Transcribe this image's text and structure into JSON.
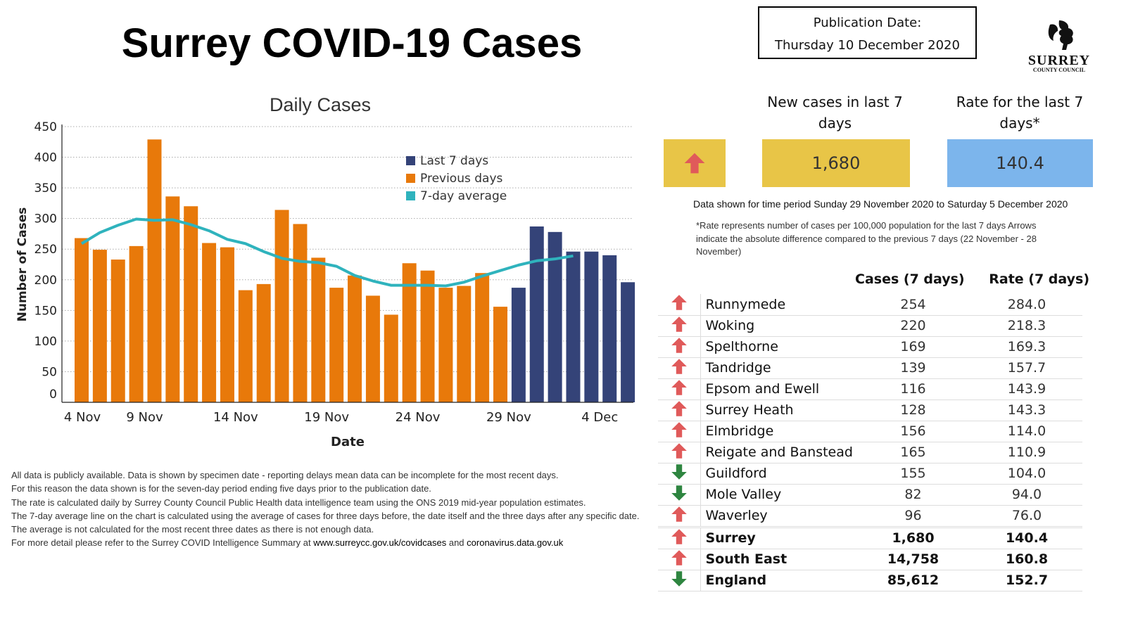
{
  "title": "Surrey COVID-19 Cases",
  "publication": {
    "label": "Publication Date:",
    "date": "Thursday 10 December 2020"
  },
  "logo": {
    "line1": "SURREY",
    "line2": "COUNTY COUNCIL"
  },
  "kpis": {
    "trend_icon": "arrow-up-icon",
    "trend_color": "#e05a5a",
    "trend_box_color": "#e8c547",
    "new_cases_label": "New cases in last 7 days",
    "new_cases_value": "1,680",
    "new_cases_color": "#e8c547",
    "rate_label": "Rate for the last 7 days*",
    "rate_value": "140.4",
    "rate_color": "#7cb5ec"
  },
  "period_text": "Data shown for time period Sunday 29 November 2020 to Saturday 5 December 2020",
  "rate_note": "*Rate represents number of cases per 100,000 population for the last 7 days Arrows indicate the absolute difference compared to the previous 7 days (22 November - 28 November)",
  "table": {
    "headers": [
      "Cases  (7 days)",
      "Rate (7 days)"
    ],
    "rows": [
      {
        "name": "Runnymede",
        "cases": "254",
        "rate": "284.0",
        "trend": "up"
      },
      {
        "name": "Woking",
        "cases": "220",
        "rate": "218.3",
        "trend": "up"
      },
      {
        "name": "Spelthorne",
        "cases": "169",
        "rate": "169.3",
        "trend": "up"
      },
      {
        "name": "Tandridge",
        "cases": "139",
        "rate": "157.7",
        "trend": "up"
      },
      {
        "name": "Epsom and Ewell",
        "cases": "116",
        "rate": "143.9",
        "trend": "up"
      },
      {
        "name": "Surrey Heath",
        "cases": "128",
        "rate": "143.3",
        "trend": "up"
      },
      {
        "name": "Elmbridge",
        "cases": "156",
        "rate": "114.0",
        "trend": "up"
      },
      {
        "name": "Reigate and Banstead",
        "cases": "165",
        "rate": "110.9",
        "trend": "up"
      },
      {
        "name": "Guildford",
        "cases": "155",
        "rate": "104.0",
        "trend": "down"
      },
      {
        "name": "Mole Valley",
        "cases": "82",
        "rate": "94.0",
        "trend": "down"
      },
      {
        "name": "Waverley",
        "cases": "96",
        "rate": "76.0",
        "trend": "up"
      }
    ],
    "totals": [
      {
        "name": "Surrey",
        "cases": "1,680",
        "rate": "140.4",
        "trend": "up"
      },
      {
        "name": "South East",
        "cases": "14,758",
        "rate": "160.8",
        "trend": "up"
      },
      {
        "name": "England",
        "cases": "85,612",
        "rate": "152.7",
        "trend": "down"
      }
    ],
    "up_color": "#e05a5a",
    "down_color": "#2e8540"
  },
  "notes": [
    "All data is publicly available. Data is shown by specimen date - reporting delays mean data can be incomplete for the most recent days.",
    "For this reason the data shown is for the seven-day period ending five days prior to the publication date.",
    "The rate is calculated daily by Surrey County Council Public Health data intelligence team using the ONS 2019 mid-year population estimates.",
    "The 7-day average line on the chart is calculated using the average of cases for three days before, the date itself and the three days after any specific date. The average is not calculated for the most recent three dates as there is not enough data."
  ],
  "notes_last": {
    "prefix": "For more detail please refer to the Surrey COVID Intelligence Summary at ",
    "link1": "www.surreycc.gov.uk/covidcases",
    "mid": " and ",
    "link2": "coronavirus.data.gov.uk"
  },
  "chart_data": {
    "type": "bar",
    "title": "Daily Cases",
    "xlabel": "Date",
    "ylabel": "Number of Cases",
    "ylim": [
      0,
      450
    ],
    "yticks": [
      0,
      50,
      100,
      150,
      200,
      250,
      300,
      350,
      400,
      450
    ],
    "grid": true,
    "legend_position": "top-right",
    "x": [
      "5 Nov",
      "6 Nov",
      "7 Nov",
      "8 Nov",
      "9 Nov",
      "10 Nov",
      "11 Nov",
      "12 Nov",
      "13 Nov",
      "14 Nov",
      "15 Nov",
      "16 Nov",
      "17 Nov",
      "18 Nov",
      "19 Nov",
      "20 Nov",
      "21 Nov",
      "22 Nov",
      "23 Nov",
      "24 Nov",
      "25 Nov",
      "26 Nov",
      "27 Nov",
      "28 Nov",
      "29 Nov",
      "30 Nov",
      "1 Dec",
      "2 Dec",
      "3 Dec",
      "4 Dec",
      "5 Dec"
    ],
    "xtick_labels": [
      "4 Nov",
      "9 Nov",
      "14 Nov",
      "19 Nov",
      "24 Nov",
      "29 Nov",
      "4 Dec"
    ],
    "series": [
      {
        "name": "Previous days",
        "kind": "bar",
        "color": "#e8790a",
        "values": [
          268,
          249,
          233,
          255,
          429,
          336,
          320,
          260,
          253,
          183,
          193,
          314,
          291,
          236,
          187,
          207,
          174,
          143,
          227,
          215,
          187,
          190,
          211,
          156,
          null,
          null,
          null,
          null,
          null,
          null,
          null
        ]
      },
      {
        "name": "Last 7 days",
        "kind": "bar",
        "color": "#344378",
        "values": [
          null,
          null,
          null,
          null,
          null,
          null,
          null,
          null,
          null,
          null,
          null,
          null,
          null,
          null,
          null,
          null,
          null,
          null,
          null,
          null,
          null,
          null,
          null,
          null,
          187,
          287,
          278,
          246,
          246,
          240,
          196
        ]
      },
      {
        "name": "7-day average",
        "kind": "line",
        "color": "#2fb3bd",
        "values": [
          259,
          277,
          289,
          299,
          297,
          298,
          290,
          280,
          266,
          259,
          246,
          235,
          230,
          228,
          222,
          207,
          198,
          191,
          191,
          191,
          190,
          196,
          206,
          215,
          224,
          231,
          234,
          239,
          null,
          null,
          null
        ]
      }
    ]
  }
}
